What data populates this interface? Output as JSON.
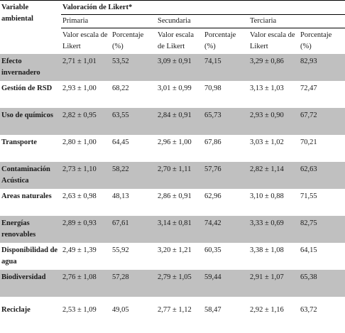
{
  "header": {
    "variable_label": "Variable ambiental",
    "likert_label": "Valoración de Likert*",
    "levels": [
      "Primaria",
      "Secundaria",
      "Terciaria"
    ],
    "col_scale_label": "Valor escala de Likert",
    "col_pct_label": "Porcentaje (%)"
  },
  "rows": [
    {
      "label": "Efecto invernadero",
      "p_scale": "2,71 ± 1,01",
      "p_pct": "53,52",
      "s_scale": "3,09 ± 0,91",
      "s_pct": "74,15",
      "t_scale": "3,29 ± 0,86",
      "t_pct": "82,93"
    },
    {
      "label": "Gestión de RSD",
      "p_scale": "2,93 ± 1,00",
      "p_pct": "68,22",
      "s_scale": "3,01 ± 0,99",
      "s_pct": "70,98",
      "t_scale": "3,13 ± 1,03",
      "t_pct": "72,47"
    },
    {
      "label": "Uso de químicos",
      "p_scale": "2,82 ± 0,95",
      "p_pct": "63,55",
      "s_scale": "2,84 ± 0,91",
      "s_pct": "65,73",
      "t_scale": "2,93 ± 0,90",
      "t_pct": "67,72"
    },
    {
      "label": "Transporte",
      "p_scale": "2,80 ± 1,00",
      "p_pct": "64,45",
      "s_scale": "2,96 ± 1,00",
      "s_pct": "67,86",
      "t_scale": "3,03 ± 1,02",
      "t_pct": "70,21"
    },
    {
      "label": "Contaminación Acústica",
      "p_scale": "2,73 ± 1,10",
      "p_pct": "58,22",
      "s_scale": "2,70 ± 1,11",
      "s_pct": "57,76",
      "t_scale": "2,82 ± 1,14",
      "t_pct": "62,63"
    },
    {
      "label": "Areas naturales",
      "p_scale": "2,63 ± 0,98",
      "p_pct": "48,13",
      "s_scale": "2,86 ± 0,91",
      "s_pct": "62,96",
      "t_scale": "3,10 ± 0,88",
      "t_pct": "71,55"
    },
    {
      "label": "Energías renovables",
      "p_scale": "2,89 ± 0,93",
      "p_pct": "67,61",
      "s_scale": "3,14 ± 0,81",
      "s_pct": "74,42",
      "t_scale": "3,33 ± 0,69",
      "t_pct": "82,75"
    },
    {
      "label": "Disponibilidad de agua",
      "p_scale": "2,49 ± 1,39",
      "p_pct": "55,92",
      "s_scale": "3,20 ± 1,21",
      "s_pct": "60,35",
      "t_scale": "3,38 ± 1,08",
      "t_pct": "64,15"
    },
    {
      "label": "Biodiversidad",
      "p_scale": "2,76 ± 1,08",
      "p_pct": "57,28",
      "s_scale": "2,79 ± 1,05",
      "s_pct": "59,44",
      "t_scale": "2,91 ± 1,07",
      "t_pct": "65,38"
    },
    {
      "label": "Reciclaje",
      "p_scale": "2,53 ± 1,09",
      "p_pct": "49,05",
      "s_scale": "2,77 ± 1,12",
      "s_pct": "58,47",
      "t_scale": "2,92 ± 1,16",
      "t_pct": "63,72"
    }
  ]
}
